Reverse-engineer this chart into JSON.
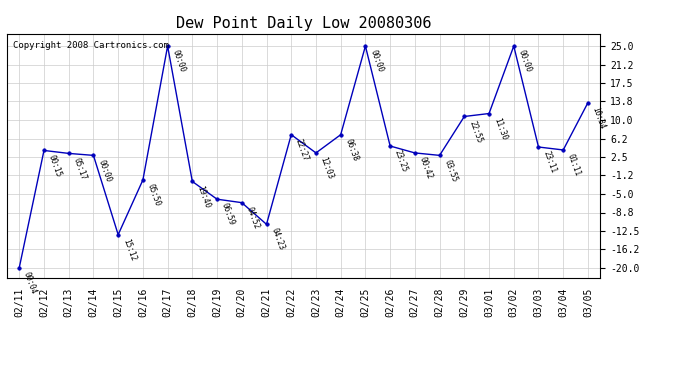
{
  "title": "Dew Point Daily Low 20080306",
  "copyright": "Copyright 2008 Cartronics.com",
  "x_labels": [
    "02/11",
    "02/12",
    "02/13",
    "02/14",
    "02/15",
    "02/16",
    "02/17",
    "02/18",
    "02/19",
    "02/20",
    "02/21",
    "02/22",
    "02/23",
    "02/24",
    "02/25",
    "02/26",
    "02/27",
    "02/28",
    "02/29",
    "03/01",
    "03/02",
    "03/03",
    "03/04",
    "03/05"
  ],
  "y_values": [
    -20.0,
    3.8,
    3.2,
    2.8,
    -13.3,
    -2.2,
    25.0,
    -2.5,
    -6.1,
    -6.8,
    -11.2,
    7.0,
    3.3,
    7.0,
    25.0,
    4.7,
    3.3,
    2.8,
    10.7,
    11.3,
    25.0,
    4.5,
    3.9,
    13.5
  ],
  "time_labels": [
    "00:04",
    "00:15",
    "05:17",
    "00:00",
    "15:12",
    "05:50",
    "00:00",
    "19:40",
    "06:59",
    "04:52",
    "04:23",
    "22:27",
    "12:03",
    "06:38",
    "00:00",
    "23:25",
    "00:42",
    "03:55",
    "22:55",
    "11:30",
    "00:00",
    "23:11",
    "01:11",
    "10:34"
  ],
  "y_ticks": [
    25.0,
    21.2,
    17.5,
    13.8,
    10.0,
    6.2,
    2.5,
    -1.2,
    -5.0,
    -8.8,
    -12.5,
    -16.2,
    -20.0
  ],
  "line_color": "#0000bb",
  "marker_color": "#0000bb",
  "bg_color": "#ffffff",
  "grid_color": "#cccccc",
  "title_fontsize": 11,
  "tick_fontsize": 7,
  "ylim": [
    -22.0,
    27.5
  ],
  "xlim": [
    -0.5,
    23.5
  ]
}
